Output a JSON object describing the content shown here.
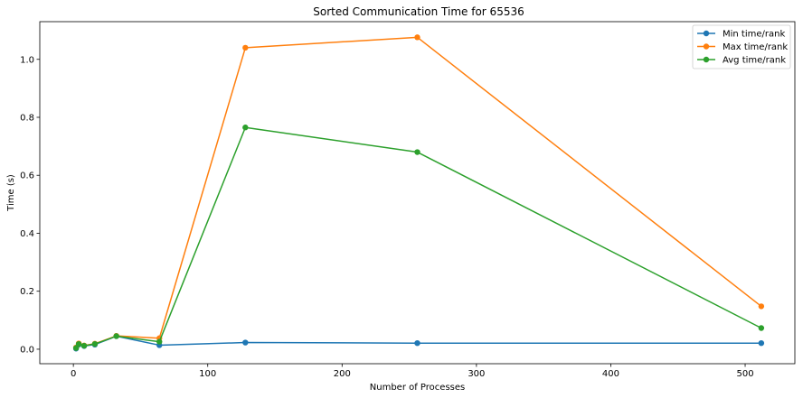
{
  "chart_data": {
    "type": "line",
    "title": "Sorted Communication Time for 65536",
    "xlabel": "Number of Processes",
    "ylabel": "Time (s)",
    "xlim": [
      -25,
      537
    ],
    "ylim": [
      -0.05,
      1.13
    ],
    "xticks": [
      0,
      100,
      200,
      300,
      400,
      500
    ],
    "yticks": [
      0.0,
      0.2,
      0.4,
      0.6,
      0.8,
      1.0
    ],
    "xtick_labels": [
      "0",
      "100",
      "200",
      "300",
      "400",
      "500"
    ],
    "ytick_labels": [
      "0.0",
      "0.2",
      "0.4",
      "0.6",
      "0.8",
      "1.0"
    ],
    "grid": false,
    "legend_position": "top-right",
    "x": [
      2,
      4,
      8,
      16,
      32,
      64,
      128,
      256,
      512
    ],
    "series": [
      {
        "name": "Min time/rank",
        "color": "#1f77b4",
        "values": [
          0.002,
          0.016,
          0.011,
          0.016,
          0.045,
          0.014,
          0.023,
          0.021,
          0.021
        ]
      },
      {
        "name": "Max time/rank",
        "color": "#ff7f0e",
        "values": [
          0.006,
          0.02,
          0.013,
          0.019,
          0.046,
          0.038,
          1.04,
          1.076,
          0.148
        ]
      },
      {
        "name": "Avg time/rank",
        "color": "#2ca02c",
        "values": [
          0.004,
          0.018,
          0.012,
          0.018,
          0.045,
          0.026,
          0.765,
          0.68,
          0.073
        ]
      }
    ]
  }
}
